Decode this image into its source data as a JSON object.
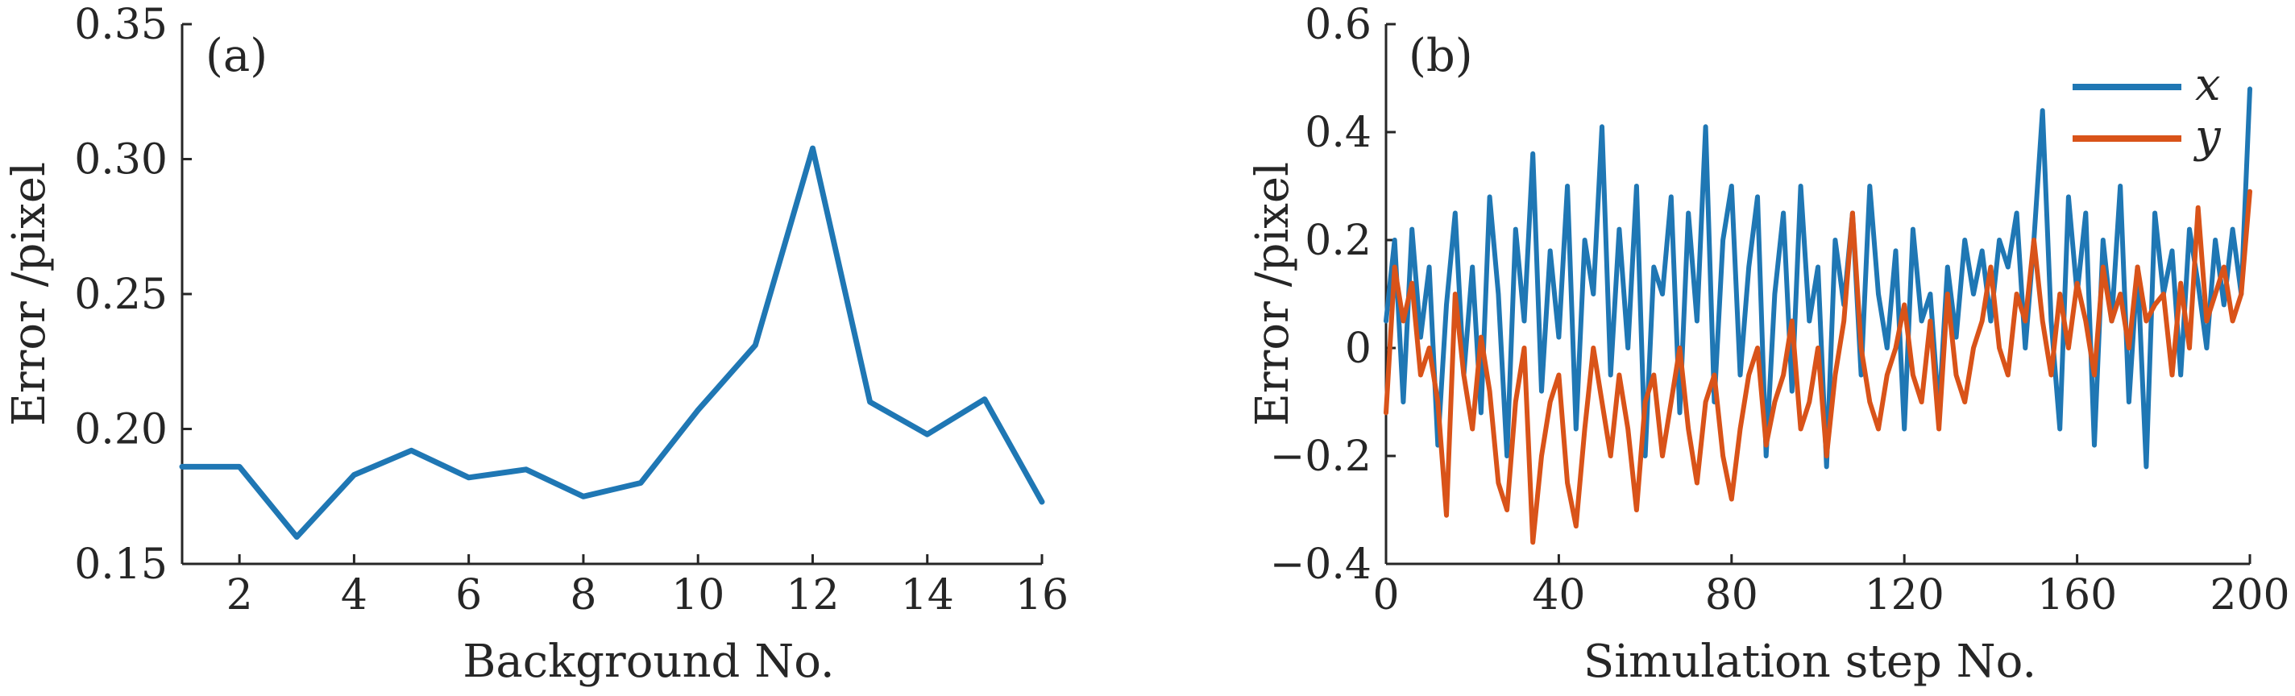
{
  "chart_data": [
    {
      "type": "line",
      "panel_label": "(a)",
      "xlabel": "Background No.",
      "ylabel": "Error /pixel",
      "xlim": [
        1,
        16
      ],
      "ylim": [
        0.15,
        0.35
      ],
      "xticks": [
        2,
        4,
        6,
        8,
        10,
        12,
        14,
        16
      ],
      "yticks": [
        0.15,
        0.2,
        0.25,
        0.3,
        0.35
      ],
      "ytick_labels": [
        "0.15",
        "0.20",
        "0.25",
        "0.30",
        "0.35"
      ],
      "grid": false,
      "series": [
        {
          "color": "#1f77b4",
          "x": [
            1,
            2,
            3,
            4,
            5,
            6,
            7,
            8,
            9,
            10,
            11,
            12,
            13,
            14,
            15,
            16
          ],
          "values": [
            0.186,
            0.186,
            0.16,
            0.183,
            0.192,
            0.182,
            0.185,
            0.175,
            0.18,
            0.207,
            0.231,
            0.304,
            0.21,
            0.198,
            0.211,
            0.173
          ]
        }
      ]
    },
    {
      "type": "line",
      "panel_label": "(b)",
      "xlabel": "Simulation step No.",
      "ylabel": "Error /pixel",
      "xlim": [
        0,
        200
      ],
      "ylim": [
        -0.4,
        0.6
      ],
      "xticks": [
        0,
        40,
        80,
        120,
        160,
        200
      ],
      "yticks": [
        -0.4,
        -0.2,
        0,
        0.2,
        0.4,
        0.6
      ],
      "ytick_labels": [
        "−0.4",
        "−0.2",
        "0",
        "0.2",
        "0.4",
        "0.6"
      ],
      "grid": false,
      "legend_position": "top-right",
      "series": [
        {
          "name": "x",
          "color": "#1f77b4",
          "x": [
            0,
            2,
            4,
            6,
            8,
            10,
            12,
            14,
            16,
            18,
            20,
            22,
            24,
            26,
            28,
            30,
            32,
            34,
            36,
            38,
            40,
            42,
            44,
            46,
            48,
            50,
            52,
            54,
            56,
            58,
            60,
            62,
            64,
            66,
            68,
            70,
            72,
            74,
            76,
            78,
            80,
            82,
            84,
            86,
            88,
            90,
            92,
            94,
            96,
            98,
            100,
            102,
            104,
            106,
            108,
            110,
            112,
            114,
            116,
            118,
            120,
            122,
            124,
            126,
            128,
            130,
            132,
            134,
            136,
            138,
            140,
            142,
            144,
            146,
            148,
            150,
            152,
            154,
            156,
            158,
            160,
            162,
            164,
            166,
            168,
            170,
            172,
            174,
            176,
            178,
            180,
            182,
            184,
            186,
            188,
            190,
            192,
            194,
            196,
            198,
            200
          ],
          "values": [
            0.05,
            0.2,
            -0.1,
            0.22,
            0.02,
            0.15,
            -0.18,
            0.08,
            0.25,
            -0.05,
            0.15,
            -0.12,
            0.28,
            0.1,
            -0.2,
            0.22,
            0.05,
            0.36,
            -0.08,
            0.18,
            0.02,
            0.3,
            -0.15,
            0.2,
            0.1,
            0.41,
            -0.05,
            0.22,
            0.0,
            0.3,
            -0.2,
            0.15,
            0.1,
            0.28,
            -0.12,
            0.25,
            0.05,
            0.41,
            -0.1,
            0.2,
            0.3,
            -0.05,
            0.15,
            0.28,
            -0.2,
            0.1,
            0.25,
            -0.08,
            0.3,
            0.05,
            0.15,
            -0.22,
            0.2,
            0.08,
            0.25,
            -0.05,
            0.3,
            0.1,
            0.0,
            0.18,
            -0.15,
            0.22,
            0.05,
            0.1,
            -0.12,
            0.15,
            0.02,
            0.2,
            0.1,
            0.18,
            0.05,
            0.2,
            0.15,
            0.25,
            0.0,
            0.2,
            0.44,
            0.05,
            -0.15,
            0.28,
            0.1,
            0.25,
            -0.18,
            0.2,
            0.05,
            0.3,
            -0.1,
            0.15,
            -0.22,
            0.25,
            0.1,
            0.18,
            -0.05,
            0.22,
            0.12,
            0.0,
            0.2,
            0.08,
            0.22,
            0.1,
            0.48
          ]
        },
        {
          "name": "y",
          "color": "#d95319",
          "x": [
            0,
            2,
            4,
            6,
            8,
            10,
            12,
            14,
            16,
            18,
            20,
            22,
            24,
            26,
            28,
            30,
            32,
            34,
            36,
            38,
            40,
            42,
            44,
            46,
            48,
            50,
            52,
            54,
            56,
            58,
            60,
            62,
            64,
            66,
            68,
            70,
            72,
            74,
            76,
            78,
            80,
            82,
            84,
            86,
            88,
            90,
            92,
            94,
            96,
            98,
            100,
            102,
            104,
            106,
            108,
            110,
            112,
            114,
            116,
            118,
            120,
            122,
            124,
            126,
            128,
            130,
            132,
            134,
            136,
            138,
            140,
            142,
            144,
            146,
            148,
            150,
            152,
            154,
            156,
            158,
            160,
            162,
            164,
            166,
            168,
            170,
            172,
            174,
            176,
            178,
            180,
            182,
            184,
            186,
            188,
            190,
            192,
            194,
            196,
            198,
            200
          ],
          "values": [
            -0.12,
            0.15,
            0.05,
            0.12,
            -0.05,
            0.0,
            -0.1,
            -0.31,
            0.1,
            -0.05,
            -0.15,
            0.02,
            -0.08,
            -0.25,
            -0.3,
            -0.1,
            0.0,
            -0.36,
            -0.2,
            -0.1,
            -0.05,
            -0.25,
            -0.33,
            -0.15,
            0.0,
            -0.1,
            -0.2,
            -0.05,
            -0.15,
            -0.3,
            -0.1,
            -0.05,
            -0.2,
            -0.1,
            0.0,
            -0.15,
            -0.25,
            -0.1,
            -0.05,
            -0.2,
            -0.28,
            -0.15,
            -0.05,
            0.0,
            -0.18,
            -0.1,
            -0.05,
            0.05,
            -0.15,
            -0.1,
            0.0,
            -0.2,
            -0.05,
            0.05,
            0.25,
            0.0,
            -0.1,
            -0.15,
            -0.05,
            0.0,
            0.08,
            -0.05,
            -0.1,
            0.05,
            -0.15,
            0.1,
            -0.05,
            -0.1,
            0.0,
            0.05,
            0.15,
            0.0,
            -0.05,
            0.1,
            0.05,
            0.2,
            0.05,
            -0.05,
            0.1,
            0.0,
            0.12,
            0.05,
            -0.05,
            0.15,
            0.05,
            0.1,
            0.0,
            0.15,
            0.05,
            0.08,
            0.1,
            -0.05,
            0.12,
            0.0,
            0.26,
            0.05,
            0.1,
            0.15,
            0.05,
            0.1,
            0.29
          ]
        }
      ]
    }
  ]
}
